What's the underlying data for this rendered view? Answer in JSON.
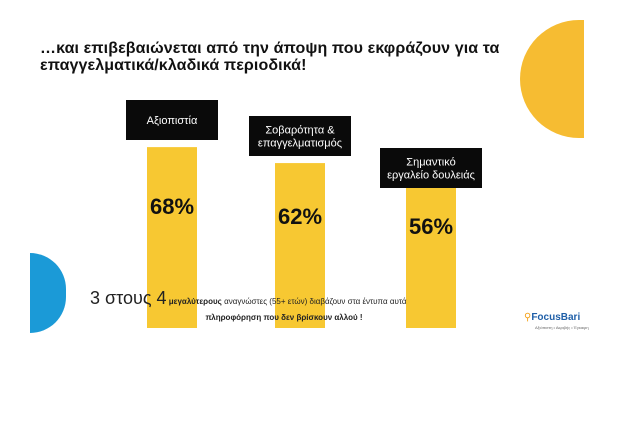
{
  "title": "…και επιβεβαιώνεται από την  άποψη που εκφράζουν για τα επαγγελματικά/κλαδικά περιοδικά!",
  "chart_data": {
    "type": "bar",
    "categories": [
      "Αξιοπιστία",
      "Σοβαρότητα & επαγγελματισμός",
      "Σημαντικό εργαλείο δουλειάς"
    ],
    "category_lines": [
      [
        "Αξιοπιστία"
      ],
      [
        "Σοβαρότητα &",
        "επαγγελματισμός"
      ],
      [
        "Σημαντικό",
        "εργαλείο δουλειάς"
      ]
    ],
    "values": [
      68,
      62,
      56
    ],
    "value_labels": [
      "68%",
      "62%",
      "56%"
    ],
    "ylim": [
      0,
      100
    ],
    "colors": {
      "bar": "#f7c832",
      "label_bg": "#0a0a0a",
      "label_text": "#ffffff"
    }
  },
  "caption": {
    "emphasis": "3 στους 4",
    "bold_word": "μεγαλύτερους",
    "rest": "αναγνώστες (55+ ετών) διαβάζουν στα έντυπα αυτά",
    "line2": "πληροφόρηση που δεν βρίσκουν αλλού !"
  },
  "logo": {
    "name": "FocusBari",
    "icon": "magnifier-icon",
    "tagline": "Αξιόπιστη • Ακριβής • Έγκαιρη"
  },
  "decor": {
    "orange": "#f6bc32",
    "blue": "#1b9ad7"
  }
}
